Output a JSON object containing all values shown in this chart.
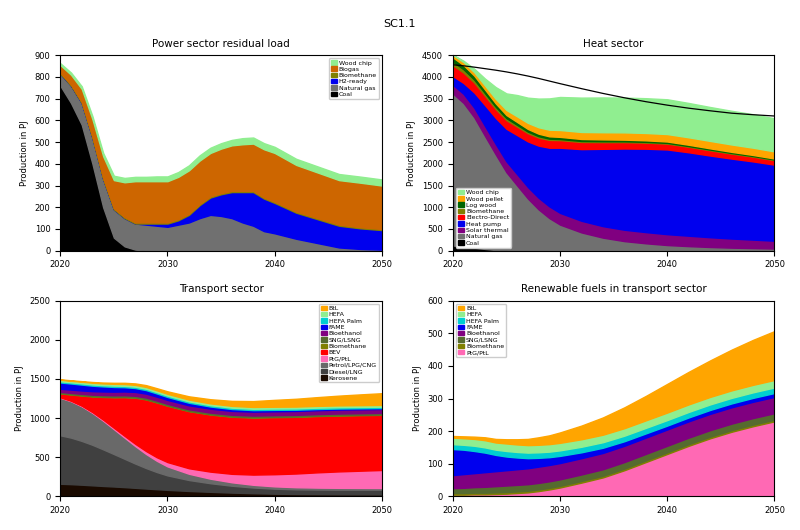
{
  "title": "SC1.1",
  "power": {
    "title": "Power sector residual load",
    "ylabel": "Production in PJ",
    "ylim": [
      0,
      900
    ],
    "yticks": [
      0,
      100,
      200,
      300,
      400,
      500,
      600,
      700,
      800,
      900
    ],
    "legend_labels": [
      "Wood chip",
      "Biogas",
      "Biomethane",
      "H2-ready",
      "Natural gas",
      "Coal"
    ],
    "legend_colors": [
      "#90EE90",
      "#CD6600",
      "#808000",
      "#0000EE",
      "#707070",
      "#000000"
    ]
  },
  "heat": {
    "title": "Heat sector",
    "ylabel": "Production in PJ",
    "ylim": [
      0,
      4500
    ],
    "yticks": [
      0,
      500,
      1000,
      1500,
      2000,
      2500,
      3000,
      3500,
      4000,
      4500
    ],
    "legend_labels": [
      "Wood chip",
      "Wood pellet",
      "Log wood",
      "Biomethane",
      "Electro-Direct",
      "Heat pump",
      "Solar thermal",
      "Natural gas",
      "Coal"
    ],
    "legend_colors": [
      "#90EE90",
      "#FFA500",
      "#006400",
      "#808000",
      "#FF0000",
      "#0000EE",
      "#800080",
      "#707070",
      "#000000"
    ]
  },
  "transport": {
    "title": "Transport sector",
    "ylabel": "Production in PJ",
    "ylim": [
      0,
      2500
    ],
    "yticks": [
      0,
      500,
      1000,
      1500,
      2000,
      2500
    ],
    "legend_labels": [
      "BtL",
      "HEFA",
      "HEFA Palm",
      "FAME",
      "Bioethanol",
      "SNG/LSNG",
      "Biomethane",
      "BEV",
      "PtG/PtL",
      "Petrol/LPG/CNG",
      "Diesel/LNG",
      "Kerosene"
    ],
    "legend_colors": [
      "#FFA500",
      "#90EE90",
      "#00CED1",
      "#0000EE",
      "#800080",
      "#556B2F",
      "#808000",
      "#FF0000",
      "#FF69B4",
      "#696969",
      "#404040",
      "#1a0a00"
    ]
  },
  "renewable_transport": {
    "title": "Renewable fuels in transport sector",
    "ylabel": "Production in PJ",
    "ylim": [
      0,
      600
    ],
    "yticks": [
      0,
      100,
      200,
      300,
      400,
      500,
      600
    ],
    "legend_labels": [
      "BtL",
      "HEFA",
      "HEFA Palm",
      "FAME",
      "Bioethanol",
      "SNG/LSNG",
      "Biomethane",
      "PtG/PtL"
    ],
    "legend_colors": [
      "#FFA500",
      "#90EE90",
      "#00CED1",
      "#0000EE",
      "#800080",
      "#556B2F",
      "#808000",
      "#FF69B4"
    ]
  }
}
